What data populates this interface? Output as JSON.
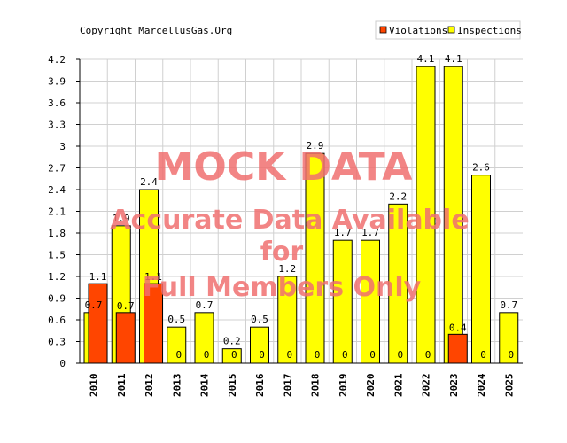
{
  "copyright": "Copyright MarcellusGas.Org",
  "watermark": {
    "line1": "MOCK DATA",
    "line2": "Accurate Data Available",
    "line3": "for",
    "line4": "Full Members Only"
  },
  "colors": {
    "violations": "#ff4500",
    "inspections": "#ffff00",
    "watermark": "#f07070",
    "grid": "#d0d0d0"
  },
  "chart_data": {
    "type": "bar",
    "categories": [
      "2010",
      "2011",
      "2012",
      "2013",
      "2014",
      "2015",
      "2016",
      "2017",
      "2018",
      "2019",
      "2020",
      "2021",
      "2022",
      "2023",
      "2024",
      "2025"
    ],
    "series": [
      {
        "name": "Violations",
        "values": [
          1.1,
          0.7,
          1.1,
          0,
          0,
          0,
          0,
          0,
          0,
          0,
          0,
          0,
          0,
          0.4,
          0,
          0
        ],
        "labels": [
          "1.1",
          "0.7",
          "1.1",
          "0",
          "0",
          "0",
          "0",
          "0",
          "0",
          "0",
          "0",
          "0",
          "0",
          "0.4",
          "0",
          "0"
        ]
      },
      {
        "name": "Inspections",
        "values": [
          0.7,
          1.9,
          2.4,
          0.5,
          0.7,
          0.2,
          0.5,
          1.2,
          2.9,
          1.7,
          1.7,
          2.2,
          4.1,
          4.1,
          2.6,
          0.7
        ],
        "labels": [
          "0.7",
          "1.9",
          "2.4",
          "0.5",
          "0.7",
          "0.2",
          "0.5",
          "1.2",
          "2.9",
          "1.7",
          "1.7",
          "2.2",
          "4.1",
          "4.1",
          "2.6",
          "0.7"
        ]
      }
    ],
    "yticks": [
      "0",
      "0.3",
      "0.6",
      "0.9",
      "1.2",
      "1.5",
      "1.8",
      "2.1",
      "2.4",
      "2.7",
      "3",
      "3.3",
      "3.6",
      "3.9",
      "4.2"
    ],
    "ylim": [
      0,
      4.2
    ],
    "grid": true,
    "legend": "top-right"
  }
}
